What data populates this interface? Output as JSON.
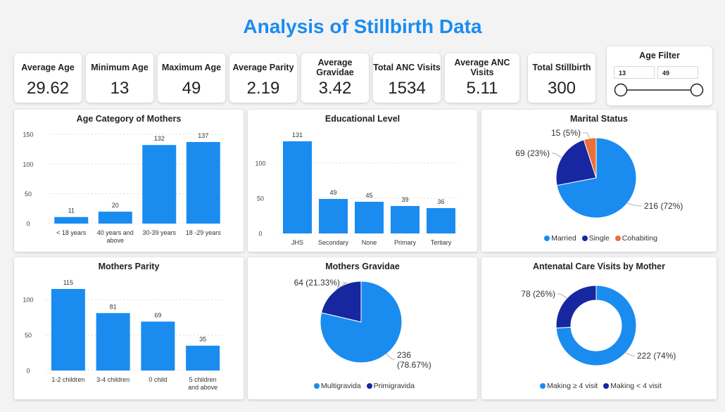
{
  "title": "Analysis of Stillbirth Data",
  "kpis": [
    {
      "label": "Average Age",
      "value": "29.62"
    },
    {
      "label": "Minimum Age",
      "value": "13"
    },
    {
      "label": "Maximum Age",
      "value": "49"
    },
    {
      "label": "Average Parity",
      "value": "2.19"
    },
    {
      "label": "Average Gravidae",
      "value": "3.42"
    },
    {
      "label": "Total ANC Visits",
      "value": "1534"
    },
    {
      "label": "Average ANC Visits",
      "value": "5.11"
    },
    {
      "label": "Total Stillbirth",
      "value": "300"
    }
  ],
  "age_filter": {
    "title": "Age Filter",
    "min": "13",
    "max": "49",
    "low_fraction": 0,
    "high_fraction": 1
  },
  "colors": {
    "primary": "#1a8cf0",
    "secondary": "#1727a0",
    "tertiary": "#e8703a",
    "grid": "#dddddd"
  },
  "chart_data": [
    {
      "type": "bar",
      "title": "Age Category of Mothers",
      "categories": [
        "< 18 years",
        "40 years and above",
        "30-39 years",
        "18 -29 years"
      ],
      "values": [
        11,
        20,
        132,
        137
      ],
      "yticks": [
        "0",
        "50",
        "100",
        "150"
      ],
      "ylim": [
        0,
        150
      ]
    },
    {
      "type": "bar",
      "title": "Educational Level",
      "categories": [
        "JHS",
        "Secondary",
        "None",
        "Primary",
        "Tertiary"
      ],
      "values": [
        131,
        49,
        45,
        39,
        36
      ],
      "yticks": [
        "0",
        "50",
        "100"
      ],
      "ylim": [
        0,
        131
      ]
    },
    {
      "type": "pie",
      "title": "Marital Status",
      "labels": [
        "Married",
        "Single",
        "Cohabiting"
      ],
      "values": [
        216,
        69,
        15
      ],
      "data_labels": [
        "216 (72%)",
        "69 (23%)",
        "15 (5%)"
      ],
      "legend": "bottom"
    },
    {
      "type": "bar",
      "title": "Mothers Parity",
      "categories": [
        "1-2 children",
        "3-4 children",
        "0 child",
        "5 children and above"
      ],
      "values": [
        115,
        81,
        69,
        35
      ],
      "yticks": [
        "0",
        "50",
        "100"
      ],
      "ylim": [
        0,
        115
      ]
    },
    {
      "type": "pie",
      "title": "Mothers Gravidae",
      "labels": [
        "Multigravida",
        "Primigravida"
      ],
      "values": [
        236,
        64
      ],
      "data_labels": [
        "236 (78.67%)",
        "64 (21.33%)"
      ],
      "legend": "bottom"
    },
    {
      "type": "donut",
      "title": "Antenatal Care Visits by Mother",
      "labels": [
        "Making ≥ 4 visit",
        "Making < 4 visit"
      ],
      "values": [
        222,
        78
      ],
      "data_labels": [
        "222 (74%)",
        "78 (26%)"
      ],
      "legend": "bottom"
    }
  ]
}
